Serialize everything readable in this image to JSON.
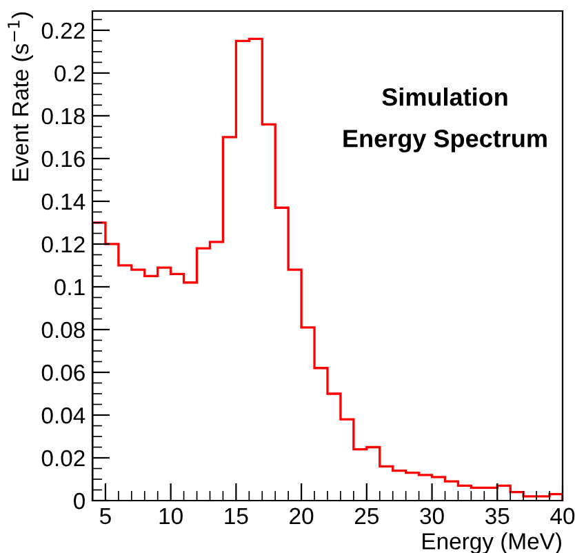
{
  "chart_data": {
    "type": "histogram",
    "annotations": [
      "Simulation",
      "Energy Spectrum"
    ],
    "xlabel": "Energy (MeV)",
    "ylabel": "Event Rate (s$^{−1}$)",
    "bins": [
      4,
      5,
      6,
      7,
      8,
      9,
      10,
      11,
      12,
      13,
      14,
      15,
      16,
      17,
      18,
      19,
      20,
      21,
      22,
      23,
      24,
      25,
      26,
      27,
      28,
      29,
      30,
      31,
      32,
      33,
      34,
      35,
      36,
      37,
      38,
      39,
      40
    ],
    "values": [
      0.13,
      0.12,
      0.11,
      0.108,
      0.105,
      0.109,
      0.106,
      0.102,
      0.118,
      0.121,
      0.17,
      0.215,
      0.216,
      0.176,
      0.137,
      0.108,
      0.081,
      0.062,
      0.05,
      0.038,
      0.024,
      0.025,
      0.016,
      0.014,
      0.013,
      0.012,
      0.011,
      0.009,
      0.007,
      0.006,
      0.006,
      0.007,
      0.004,
      0.002,
      0.002,
      0.003
    ],
    "color": "#ff0000",
    "xlim": [
      4,
      40
    ],
    "xticks": [
      5,
      10,
      15,
      20,
      25,
      30,
      35,
      40
    ],
    "ylim": [
      0,
      0.229
    ],
    "yticks": [
      {
        "value": 0,
        "label": "0"
      },
      0.02,
      0.04,
      0.06,
      0.08,
      {
        "value": 0.1,
        "label": "0.1"
      },
      0.12,
      0.14,
      0.16,
      0.18,
      {
        "value": 0.2,
        "label": "0.2"
      },
      0.22
    ],
    "grid": false,
    "legend": false
  }
}
